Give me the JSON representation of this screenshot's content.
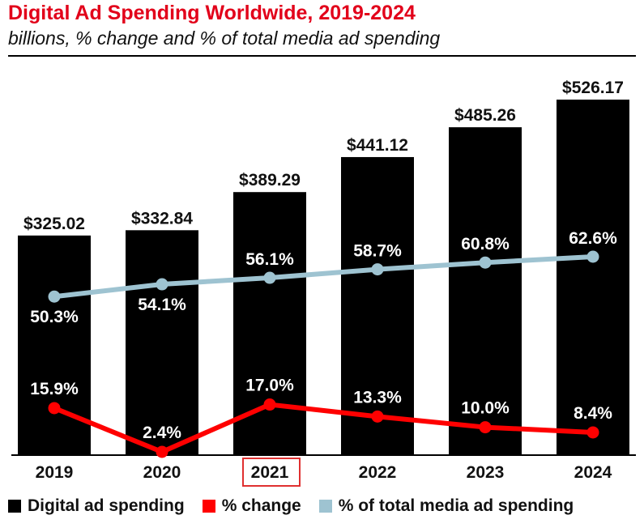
{
  "chart_data": {
    "type": "bar",
    "title": "Digital Ad Spending Worldwide, 2019-2024",
    "subtitle": "billions, % change and % of total media ad spending",
    "categories": [
      "2019",
      "2020",
      "2021",
      "2022",
      "2023",
      "2024"
    ],
    "highlighted_category": "2021",
    "series": [
      {
        "name": "Digital ad spending",
        "kind": "bar",
        "color": "#000000",
        "values": [
          325.02,
          332.84,
          389.29,
          441.12,
          485.26,
          526.17
        ],
        "labels": [
          "$325.02",
          "$332.84",
          "$389.29",
          "$441.12",
          "$485.26",
          "$526.17"
        ]
      },
      {
        "name": "% change",
        "kind": "line",
        "color": "#ff0000",
        "values": [
          15.9,
          2.4,
          17.0,
          13.3,
          10.0,
          8.4
        ],
        "labels": [
          "15.9%",
          "2.4%",
          "17.0%",
          "13.3%",
          "10.0%",
          "8.4%"
        ]
      },
      {
        "name": "% of total media ad spending",
        "kind": "line",
        "color": "#9ec3d1",
        "values": [
          50.3,
          54.1,
          56.1,
          58.7,
          60.8,
          62.6
        ],
        "labels": [
          "50.3%",
          "54.1%",
          "56.1%",
          "58.7%",
          "60.8%",
          "62.6%"
        ]
      }
    ],
    "bar_ylim": [
      0,
      600
    ],
    "pct_ylim": [
      2.4,
      62.6
    ],
    "legend_position": "bottom"
  },
  "legend": [
    {
      "label": "Digital ad spending",
      "color": "#000000"
    },
    {
      "label": "% change",
      "color": "#ff0000"
    },
    {
      "label": "% of total media ad spending",
      "color": "#9ec3d1"
    }
  ]
}
